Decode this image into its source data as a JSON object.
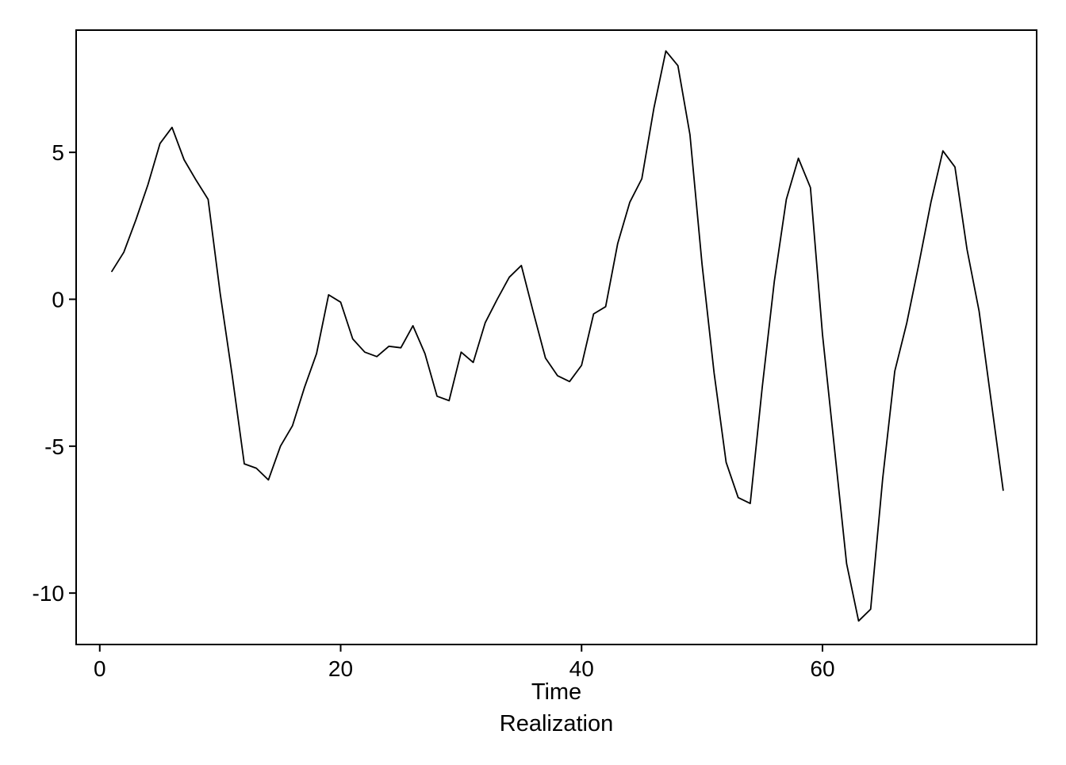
{
  "figure": {
    "background_color": "#ffffff",
    "frame_color": "#000000"
  },
  "chart_data": {
    "type": "line",
    "title": "",
    "xlabel": "Time",
    "sublabel": "Realization",
    "ylabel": "",
    "legend": null,
    "grid": false,
    "line_color": "#000000",
    "xlim": [
      -1.96,
      77.78
    ],
    "ylim": [
      -11.75,
      9.16
    ],
    "x_ticks": [
      0,
      20,
      40,
      60
    ],
    "y_ticks": [
      -10,
      -5,
      0,
      5
    ],
    "x": [
      1,
      2,
      3,
      4,
      5,
      6,
      7,
      8,
      9,
      10,
      11,
      12,
      13,
      14,
      15,
      16,
      17,
      18,
      19,
      20,
      21,
      22,
      23,
      24,
      25,
      26,
      27,
      28,
      29,
      30,
      31,
      32,
      33,
      34,
      35,
      36,
      37,
      38,
      39,
      40,
      41,
      42,
      43,
      44,
      45,
      46,
      47,
      48,
      49,
      50,
      51,
      52,
      53,
      54,
      55,
      56,
      57,
      58,
      59,
      60,
      61,
      62,
      63,
      64,
      65,
      66,
      67,
      68,
      69,
      70,
      71,
      72,
      73,
      74,
      75
    ],
    "values": [
      0.95,
      1.6,
      2.7,
      3.9,
      5.3,
      5.85,
      4.75,
      4.05,
      3.4,
      0.2,
      -2.6,
      -5.6,
      -5.75,
      -6.15,
      -5.0,
      -4.3,
      -3.0,
      -1.85,
      0.15,
      -0.1,
      -1.35,
      -1.8,
      -1.95,
      -1.6,
      -1.65,
      -0.9,
      -1.85,
      -3.3,
      -3.45,
      -1.8,
      -2.15,
      -0.8,
      0.0,
      0.75,
      1.15,
      -0.45,
      -2.0,
      -2.6,
      -2.8,
      -2.25,
      -0.5,
      -0.25,
      1.9,
      3.3,
      4.1,
      6.5,
      8.45,
      7.95,
      5.6,
      1.2,
      -2.5,
      -5.55,
      -6.75,
      -6.95,
      -3.0,
      0.6,
      3.4,
      4.8,
      3.8,
      -1.2,
      -5.1,
      -9.0,
      -10.95,
      -10.55,
      -6.1,
      -2.45,
      -0.8,
      1.2,
      3.3,
      5.05,
      4.5,
      1.7,
      -0.4,
      -3.45,
      -6.5
    ]
  }
}
